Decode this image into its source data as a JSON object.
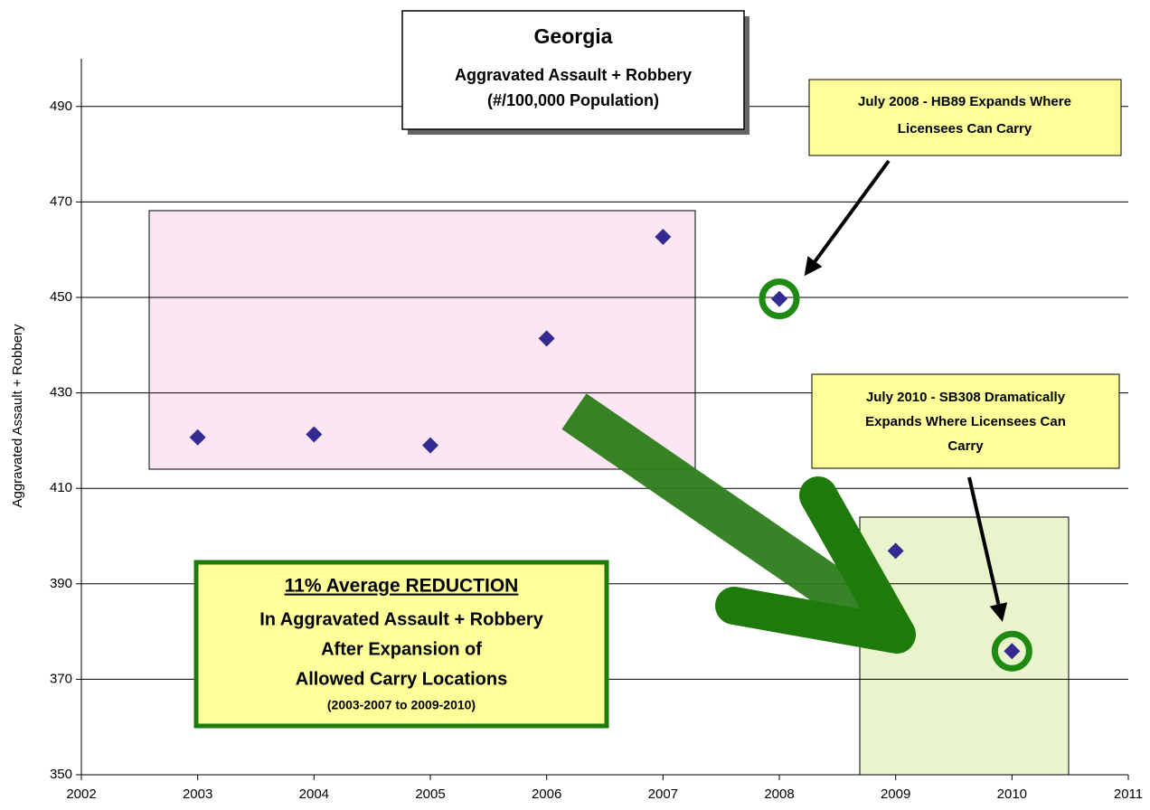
{
  "chart_data": {
    "type": "scatter",
    "title": [
      "Georgia",
      "Aggravated Assault + Robbery",
      "(#/100,000 Population)"
    ],
    "y_label": "Aggravated Assault + Robbery",
    "x": [
      2003,
      2004,
      2005,
      2006,
      2007,
      2008,
      2009,
      2010
    ],
    "values": [
      420.7,
      421.3,
      419,
      441.4,
      462.7,
      449.7,
      396.9,
      375.9
    ],
    "color": "#332b8f",
    "xlim": [
      2002,
      2011
    ],
    "xticks": [
      2002,
      2003,
      2004,
      2005,
      2006,
      2007,
      2008,
      2009,
      2010,
      2011
    ],
    "ylim": [
      350,
      500
    ],
    "yticks": [
      350,
      370,
      390,
      410,
      430,
      450,
      470,
      490
    ],
    "grid": true,
    "annotations": [
      {
        "lines": [
          "July 2008 - HB89 Expands Where",
          "Licensees Can Carry"
        ]
      },
      {
        "lines": [
          "July 2010 - SB308 Dramatically",
          "Expands Where Licensees Can",
          "Carry"
        ]
      },
      {
        "lines": [
          "11% Average REDUCTION",
          "In Aggravated Assault + Robbery",
          "After Expansion of",
          "Allowed Carry Locations",
          "(2003-2007 to 2009-2010)"
        ]
      }
    ]
  }
}
